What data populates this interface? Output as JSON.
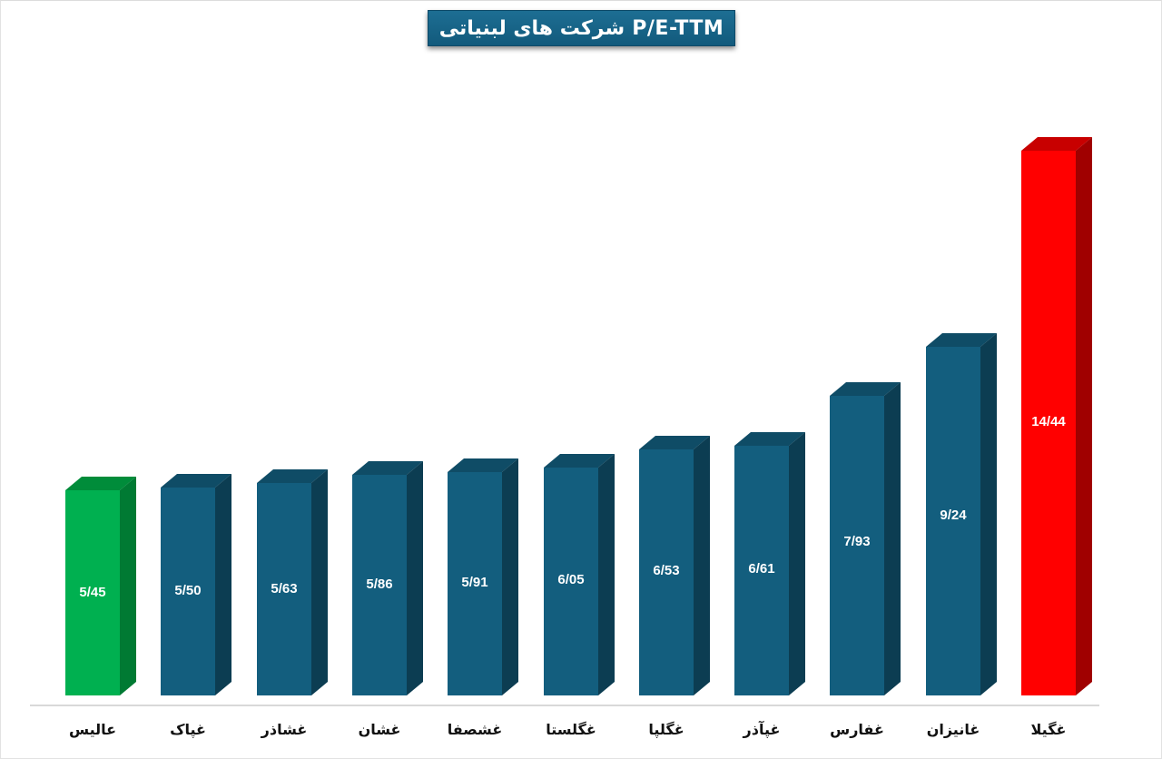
{
  "header": {
    "title": "P/E-TTM شرکت های لبنیاتی"
  },
  "colors": {
    "default_front": "#135e7e",
    "default_side": "#0c3d52",
    "default_top": "#0f4c66",
    "low_front": "#00b050",
    "low_side": "#007a33",
    "low_top": "#008c3a",
    "high_front": "#ff0000",
    "high_side": "#a00000",
    "high_top": "#c80000",
    "title_bg": "#176790",
    "axis": "#d9d9d9"
  },
  "chart_data": {
    "type": "bar",
    "title": "P/E-TTM شرکت های لبنیاتی",
    "xlabel": "",
    "ylabel": "",
    "grid": false,
    "legend": null,
    "style": "3d-column",
    "categories": [
      "عالیس",
      "غپاک",
      "غشاذر",
      "غشان",
      "غشصفا",
      "غگلستا",
      "غگلپا",
      "غپآذر",
      "غفارس",
      "غانیزان",
      "غگیلا"
    ],
    "values": [
      5.45,
      5.5,
      5.63,
      5.86,
      5.91,
      6.05,
      6.53,
      6.61,
      7.93,
      9.24,
      14.44
    ],
    "value_labels": [
      "5/45",
      "5/50",
      "5/63",
      "5/86",
      "5/91",
      "6/05",
      "6/53",
      "6/61",
      "7/93",
      "9/24",
      "14/44"
    ],
    "highlights": {
      "min": "عالیس",
      "max": "غگیلا"
    },
    "ylim": [
      0,
      14.44
    ]
  }
}
